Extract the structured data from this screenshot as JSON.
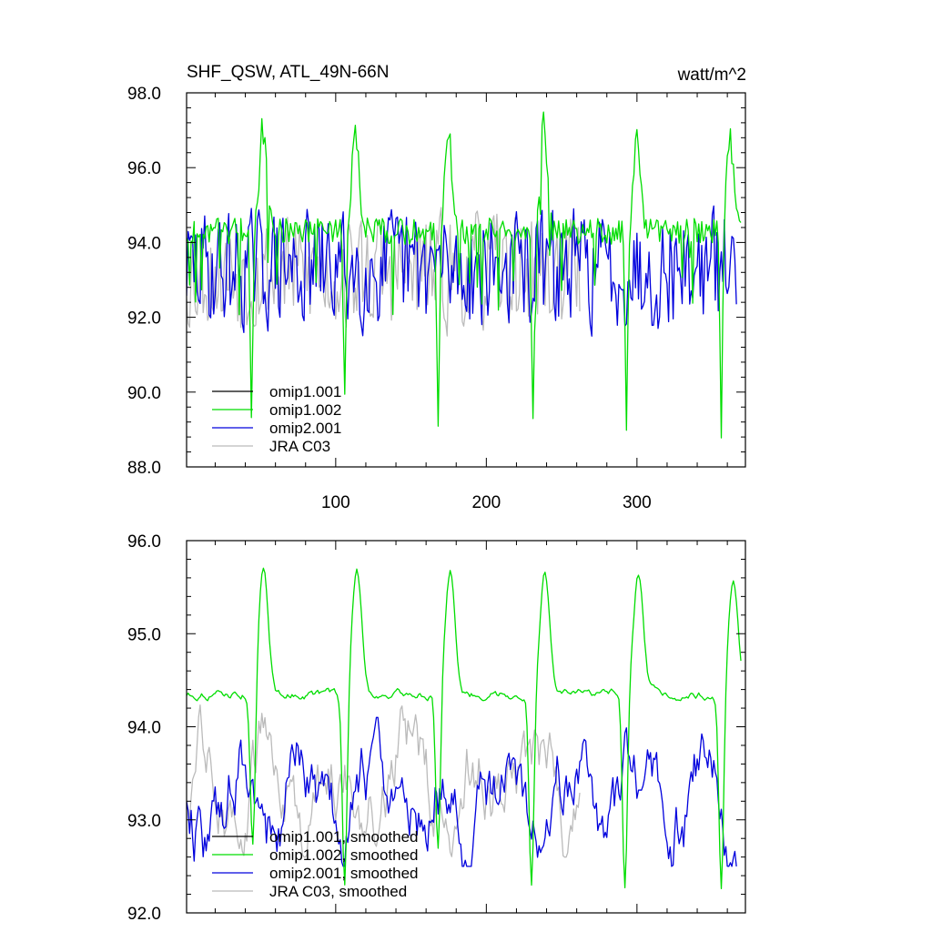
{
  "figure": {
    "title_left": "SHF_QSW, ATL_49N-66N",
    "title_right": "watt/m^2"
  },
  "colors": {
    "omip1_001": "#000000",
    "omip1_002": "#00dd00",
    "omip2_001": "#0000dd",
    "jra_c03": "#bbbbbb"
  },
  "chart_data": [
    {
      "type": "line",
      "title": "SHF_QSW, ATL_49N-66N",
      "units": "watt/m^2",
      "xlim": [
        1,
        372
      ],
      "ylim": [
        88.0,
        98.0
      ],
      "xticks": [
        100,
        200,
        300
      ],
      "yticks": [
        88.0,
        90.0,
        92.0,
        94.0,
        96.0,
        98.0
      ],
      "grid": false,
      "legend_position": "bottom-left",
      "series": [
        {
          "name": "omip1.001",
          "color": "#000000",
          "description": "hidden beneath omip1.002",
          "values": []
        },
        {
          "name": "omip1.002",
          "color": "#00dd00",
          "baseline": 94.3,
          "peaks": [
            {
              "x": 52,
              "y": 97.4
            },
            {
              "x": 113,
              "y": 97.4
            },
            {
              "x": 175,
              "y": 97.4
            },
            {
              "x": 238,
              "y": 97.4
            },
            {
              "x": 300,
              "y": 97.4
            },
            {
              "x": 362,
              "y": 97.4
            }
          ],
          "dips": [
            {
              "x": 44,
              "y": 89.2
            },
            {
              "x": 106,
              "y": 89.6
            },
            {
              "x": 168,
              "y": 89.1
            },
            {
              "x": 231,
              "y": 89.1
            },
            {
              "x": 293,
              "y": 89.1
            },
            {
              "x": 356,
              "y": 89.0
            }
          ]
        },
        {
          "name": "omip2.001",
          "color": "#0000dd",
          "mean": 93.3,
          "range": [
            90.7,
            95.2
          ]
        },
        {
          "name": "JRA C03",
          "color": "#bbbbbb",
          "mean": 93.2,
          "range": [
            90.9,
            95.4
          ],
          "x_end": 262
        }
      ]
    },
    {
      "type": "line",
      "xlim": [
        1,
        372
      ],
      "ylim": [
        92.0,
        96.0
      ],
      "xticks": [
        100,
        200,
        300
      ],
      "yticks": [
        92.0,
        93.0,
        94.0,
        95.0,
        96.0
      ],
      "grid": false,
      "legend_position": "bottom-left",
      "series": [
        {
          "name": "omip1.001, smoothed",
          "color": "#000000",
          "values": []
        },
        {
          "name": "omip1.002, smoothed",
          "color": "#00dd00",
          "baseline": 94.35,
          "peaks": [
            {
              "x": 52,
              "y": 95.67
            },
            {
              "x": 114,
              "y": 95.67
            },
            {
              "x": 176,
              "y": 95.67
            },
            {
              "x": 239,
              "y": 95.65
            },
            {
              "x": 301,
              "y": 95.62
            },
            {
              "x": 364,
              "y": 95.6
            }
          ],
          "dips": [
            {
              "x": 45,
              "y": 92.6
            },
            {
              "x": 106,
              "y": 92.25
            },
            {
              "x": 168,
              "y": 92.6
            },
            {
              "x": 230,
              "y": 92.25
            },
            {
              "x": 292,
              "y": 92.2
            },
            {
              "x": 356,
              "y": 92.2
            }
          ]
        },
        {
          "name": "omip2.001, smoothed",
          "color": "#0000dd",
          "mean": 93.2,
          "range": [
            92.5,
            94.1
          ]
        },
        {
          "name": "JRA C03, smoothed",
          "color": "#bbbbbb",
          "mean": 93.4,
          "range": [
            92.6,
            94.3
          ],
          "x_end": 262
        }
      ]
    }
  ]
}
